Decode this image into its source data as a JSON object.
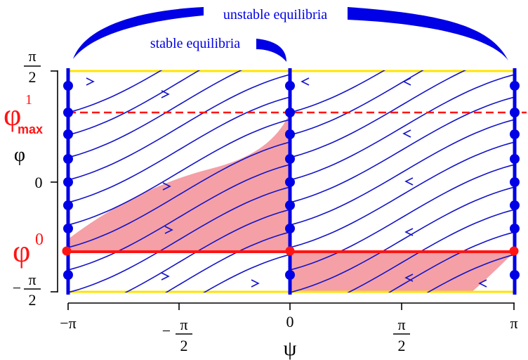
{
  "annotations": {
    "unstable": "unstable equilibria",
    "stable": "stable equilibria"
  },
  "y_axis": {
    "label": "φ",
    "ticks": [
      {
        "num": "π",
        "den": "2",
        "sign": ""
      },
      {
        "text": "0"
      },
      {
        "num": "π",
        "den": "2",
        "sign": "−"
      }
    ]
  },
  "x_axis": {
    "label": "ψ",
    "ticks": [
      {
        "text": "−π"
      },
      {
        "num": "π",
        "den": "2",
        "sign": "−"
      },
      {
        "text": "0"
      },
      {
        "num": "π",
        "den": "2",
        "sign": ""
      },
      {
        "text": "π"
      }
    ]
  },
  "markers": {
    "phi_max_base": "φ",
    "phi_max_sup": "1",
    "phi_max_sub": "max",
    "phi0_base": "φ",
    "phi0_sup": "0"
  },
  "colors": {
    "flow": "#1414c8",
    "equilibria": "#0000e6",
    "highlight": "#ff1414",
    "region": "#f4a0a6",
    "boundary": "#ffe400"
  }
}
